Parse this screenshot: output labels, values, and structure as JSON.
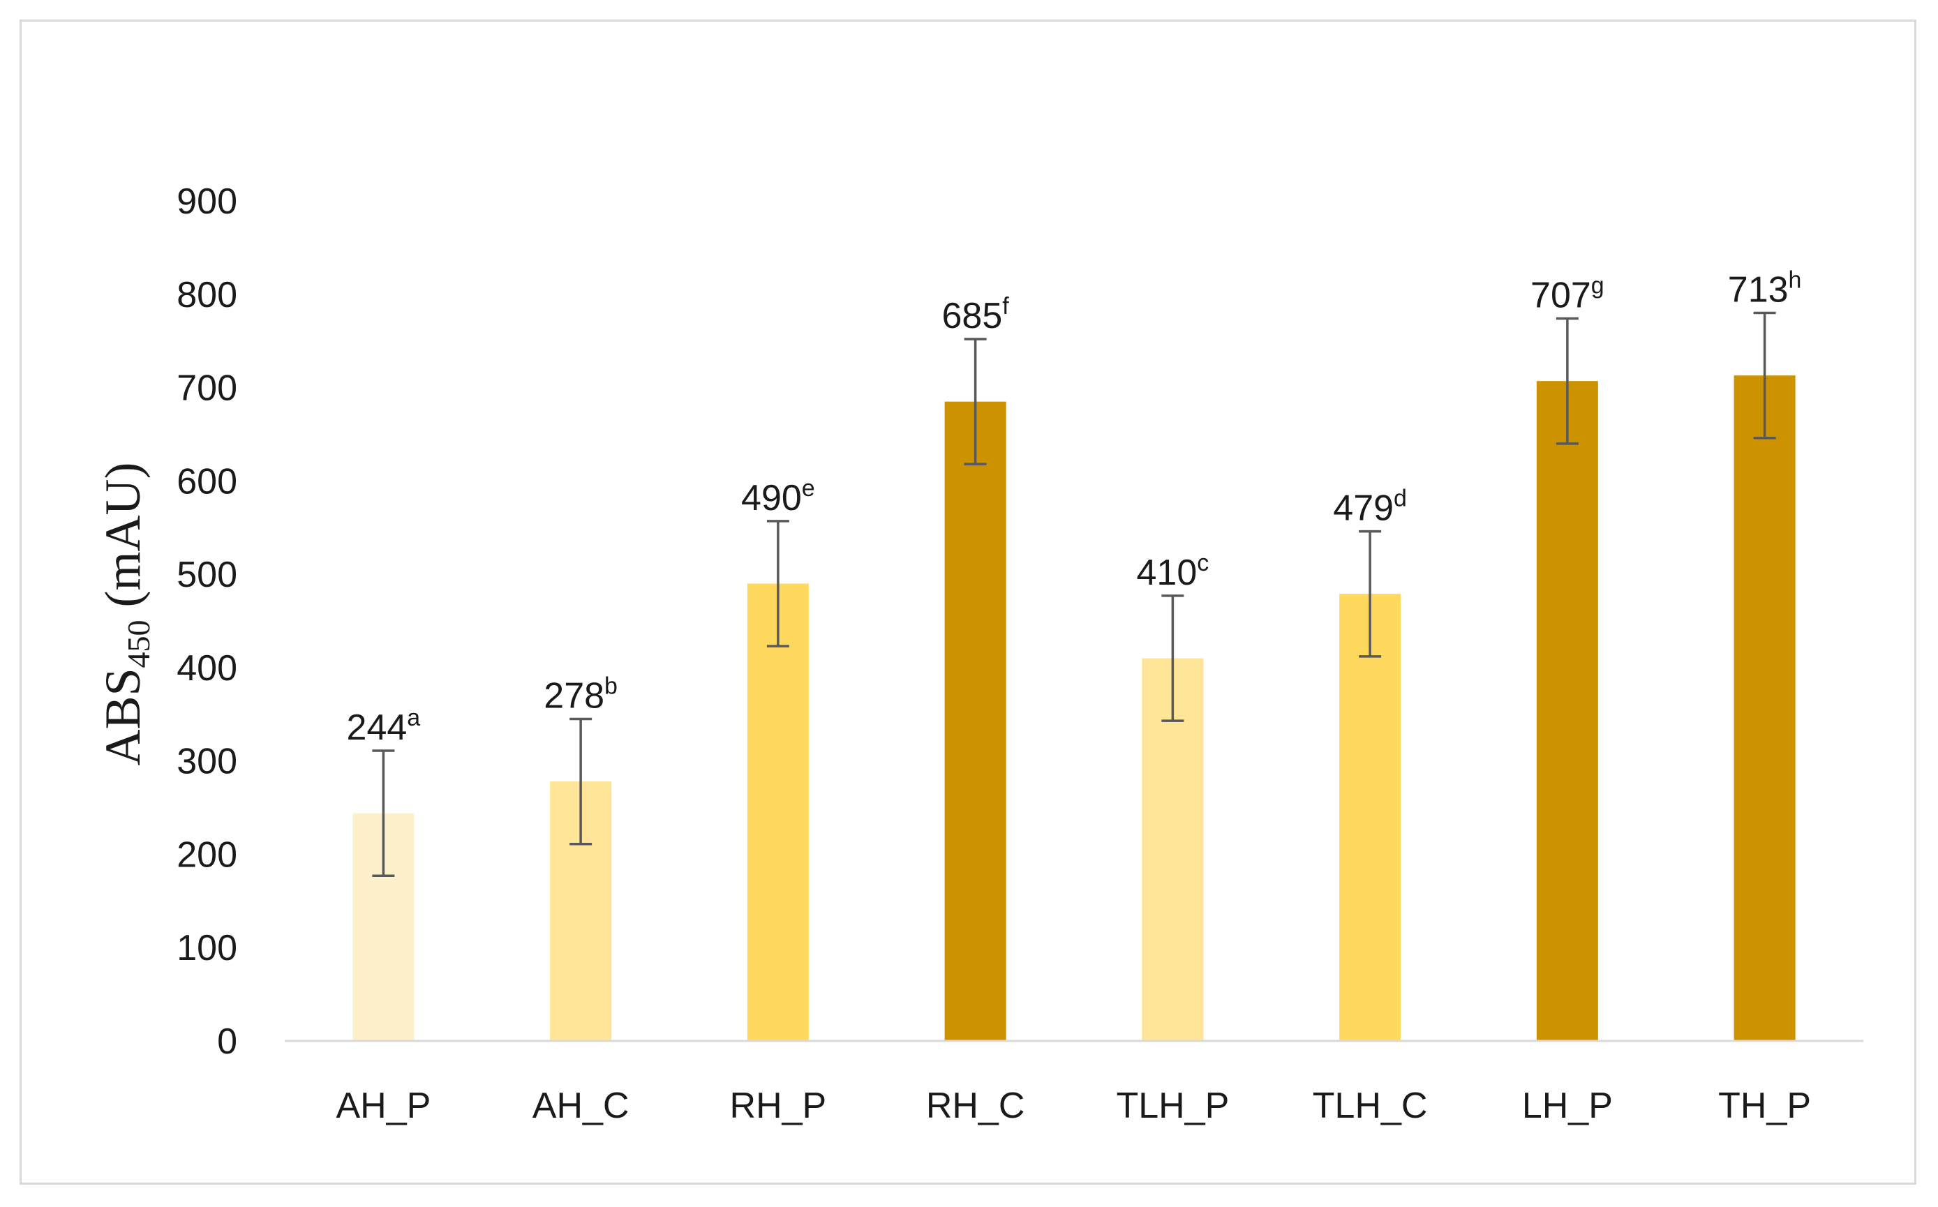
{
  "chart_data": {
    "type": "bar",
    "title": "",
    "xlabel": "",
    "ylabel": "ABS450 (mAU)",
    "ylabel_main": "ABS",
    "ylabel_sub": "450",
    "ylabel_unit": " (mAU)",
    "ylim": [
      0,
      900
    ],
    "yticks": [
      0,
      100,
      200,
      300,
      400,
      500,
      600,
      700,
      800,
      900
    ],
    "grid": false,
    "legend": "none",
    "categories": [
      "AH_P",
      "AH_C",
      "RH_P",
      "RH_C",
      "TLH_P",
      "TLH_C",
      "LH_P",
      "TH_P"
    ],
    "values": [
      244,
      278,
      490,
      685,
      410,
      479,
      707,
      713
    ],
    "error": [
      67,
      67,
      67,
      67,
      67,
      67,
      67,
      67
    ],
    "letters": [
      "a",
      "b",
      "e",
      "f",
      "c",
      "d",
      "g",
      "h"
    ],
    "data_labels": [
      "244",
      "278",
      "490",
      "685",
      "410",
      "479",
      "707",
      "713"
    ],
    "colors": [
      "#fdf1cb",
      "#fee597",
      "#fed95e",
      "#cc9200",
      "#fee597",
      "#fed95e",
      "#cc9200",
      "#cc9200"
    ],
    "axis_color": "#d9d9d9",
    "errorbar_color": "#595959"
  }
}
